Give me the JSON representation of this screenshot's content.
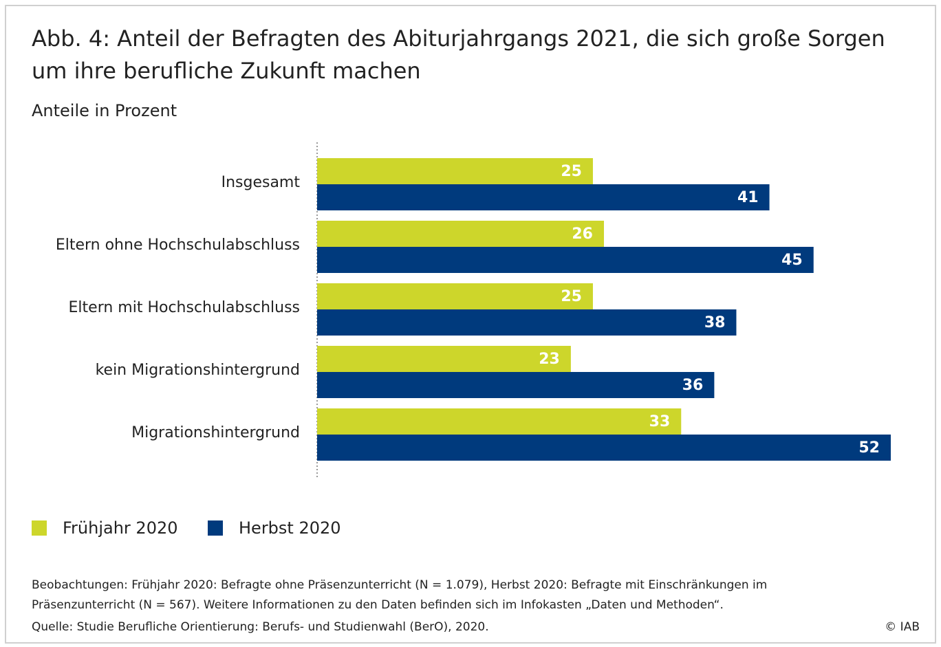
{
  "chart_data": {
    "type": "hbar",
    "title": [
      "Abb. 4: Anteil der Befragten des Abiturjahrgangs 2021, die sich große Sorgen",
      "um ihre berufliche Zukunft machen"
    ],
    "subtitle": "Anteile in Prozent",
    "categories": [
      "Insgesamt",
      "Eltern ohne Hochschulabschluss",
      "Eltern mit Hochschulabschluss",
      "kein Migrationshintergrund",
      "Migrationshintergrund"
    ],
    "series": [
      {
        "name": "Frühjahr 2020",
        "color": "#cdd62b",
        "values": [
          25,
          26,
          25,
          23,
          33
        ]
      },
      {
        "name": "Herbst 2020",
        "color": "#003a7d",
        "values": [
          41,
          45,
          38,
          36,
          52
        ]
      }
    ],
    "xlim": [
      0,
      52
    ],
    "notes": [
      "Beobachtungen: Frühjahr 2020: Befragte ohne Präsenzunterricht (N = 1.079), Herbst 2020: Befragte mit Einschränkungen im",
      "Präsenzunterricht (N = 567). Weitere Informationen zu den Daten befinden sich im Infokasten „Daten und Methoden“."
    ],
    "source": "Quelle: Studie Berufliche Orientierung: Berufs- und Studienwahl (BerO), 2020.",
    "copyright": "© IAB"
  }
}
